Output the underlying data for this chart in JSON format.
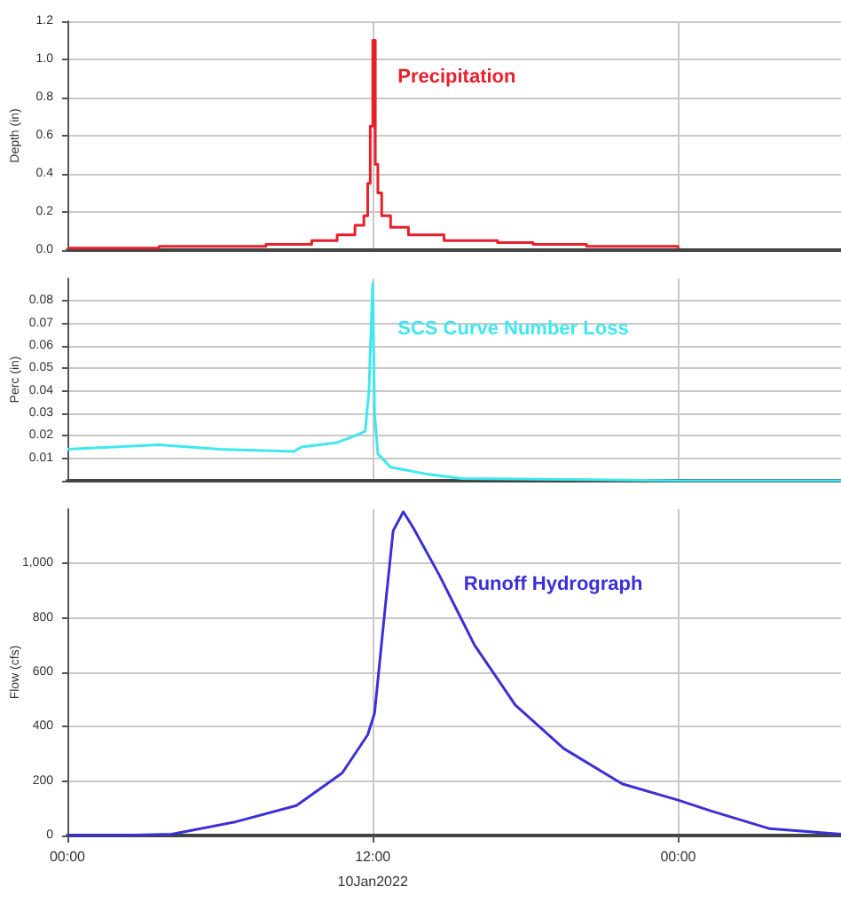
{
  "chart_data": [
    {
      "type": "step",
      "ylabel": "Depth (in)",
      "xlim": [
        0,
        30.4
      ],
      "xticks": [
        {
          "value": 0,
          "label": null
        },
        {
          "value": 12,
          "label": null
        },
        {
          "value": 24,
          "label": null
        }
      ],
      "ylim": [
        0,
        1.2
      ],
      "yticks": [
        {
          "value": 0,
          "label": "0.0"
        },
        {
          "value": 0.2,
          "label": "0.2"
        },
        {
          "value": 0.4,
          "label": "0.4"
        },
        {
          "value": 0.6,
          "label": "0.6"
        },
        {
          "value": 0.8,
          "label": "0.8"
        },
        {
          "value": 1,
          "label": "1.0"
        },
        {
          "value": 1.2,
          "label": "1.2"
        }
      ],
      "grid": true,
      "tick_labels": "y",
      "marker": "none",
      "series": [
        {
          "name": "Precipitation",
          "color": "#e8202a",
          "x": [
            0,
            3.6,
            6,
            7.8,
            9.6,
            10.6,
            11.3,
            11.65,
            11.8,
            11.9,
            12,
            12.1,
            12.2,
            12.35,
            12.7,
            13.4,
            14.8,
            16.9,
            18.3,
            20.4,
            24
          ],
          "values": [
            0.01,
            0.02,
            0.02,
            0.03,
            0.05,
            0.08,
            0.13,
            0.18,
            0.35,
            0.65,
            1.1,
            0.45,
            0.3,
            0.18,
            0.12,
            0.08,
            0.05,
            0.04,
            0.03,
            0.02,
            0.01
          ]
        }
      ]
    },
    {
      "type": "line",
      "ylabel": "Perc (in)",
      "xlim": [
        0,
        30.4
      ],
      "xticks": [
        {
          "value": 0,
          "label": null
        },
        {
          "value": 12,
          "label": null
        },
        {
          "value": 24,
          "label": null
        }
      ],
      "ylim": [
        0,
        0.09
      ],
      "yticks": [
        {
          "value": 0,
          "label": null
        },
        0.01,
        0.02,
        0.03,
        0.04,
        0.05,
        0.06,
        0.07,
        0.08
      ],
      "grid": true,
      "tick_labels": "y",
      "marker": "none",
      "series": [
        {
          "name": "SCS Curve Number Loss",
          "color": "#3fe8ef",
          "x": [
            0,
            3.6,
            6,
            8.9,
            9.2,
            10.6,
            11.3,
            11.7,
            11.85,
            11.92,
            12,
            12.07,
            12.2,
            12.7,
            14.1,
            15.5,
            20.4,
            24,
            30.4
          ],
          "values": [
            0.014,
            0.016,
            0.014,
            0.013,
            0.015,
            0.017,
            0.02,
            0.022,
            0.04,
            0.063,
            0.088,
            0.03,
            0.012,
            0.006,
            0.003,
            0.001,
            0.0005,
            0,
            0
          ]
        }
      ]
    },
    {
      "type": "line",
      "ylabel": "Flow (cfs)",
      "xlim": [
        0,
        30.4
      ],
      "xticks": [
        {
          "value": 0,
          "label": "00:00"
        },
        {
          "value": 12,
          "label": "12:00"
        },
        {
          "value": 24,
          "label": "00:00"
        }
      ],
      "ylim": [
        0,
        1200
      ],
      "yticks": [
        {
          "value": 0,
          "label": "0"
        },
        {
          "value": 200,
          "label": "200"
        },
        {
          "value": 400,
          "label": "400"
        },
        {
          "value": 600,
          "label": "600"
        },
        {
          "value": 800,
          "label": "800"
        },
        {
          "value": 1000,
          "label": "1,000"
        }
      ],
      "grid": true,
      "marker": "none",
      "annotations": [
        "10Jan2022"
      ],
      "series": [
        {
          "name": "Runoff Hydrograph",
          "color": "#3b2fd6",
          "x": [
            0,
            2,
            4.1,
            6.6,
            9,
            10.8,
            11.8,
            12.07,
            12.5,
            12.8,
            13.2,
            13.6,
            14.6,
            16,
            17.6,
            19.5,
            21.8,
            24,
            25.3,
            27.6,
            30.4
          ],
          "values": [
            0,
            0,
            5,
            50,
            110,
            230,
            370,
            450,
            850,
            1120,
            1190,
            1130,
            960,
            700,
            480,
            320,
            190,
            130,
            90,
            25,
            5
          ]
        }
      ]
    }
  ]
}
